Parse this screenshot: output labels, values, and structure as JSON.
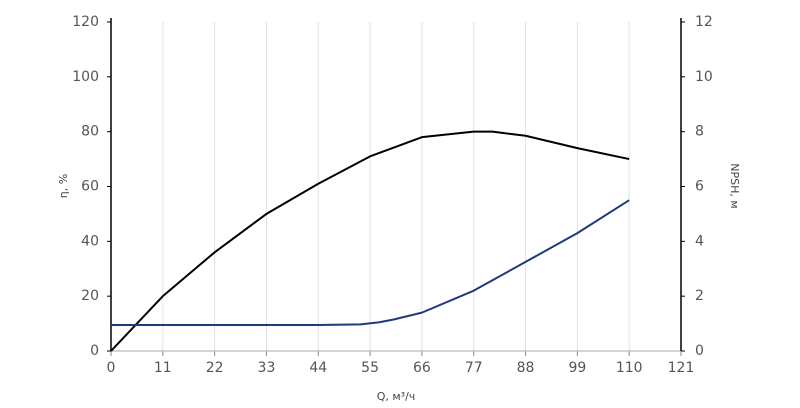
{
  "chart_data": {
    "type": "line",
    "x_label": "Q, м³/ч",
    "y_label": "η, %",
    "y2_label": "NPSH, м",
    "xlim": [
      0,
      121
    ],
    "xticks": [
      0,
      11,
      22,
      33,
      44,
      55,
      66,
      77,
      88,
      99,
      110,
      121
    ],
    "ylim": [
      0,
      120
    ],
    "yticks": [
      0,
      20,
      40,
      60,
      80,
      100,
      120
    ],
    "y2lim": [
      0,
      12
    ],
    "y2ticks": [
      0,
      2,
      4,
      6,
      8,
      10,
      12
    ],
    "grid": "x",
    "series": [
      {
        "color": "#000000",
        "x": [
          0,
          11,
          22,
          33,
          44,
          55,
          66,
          77,
          81,
          88,
          99,
          110
        ],
        "values": [
          0,
          20,
          36,
          50,
          61,
          71,
          78,
          80,
          80,
          78.5,
          74,
          70
        ]
      },
      {
        "color": "#1f3a7a",
        "axis": "y2",
        "x": [
          0,
          22,
          44,
          53,
          57,
          60,
          66,
          77,
          88,
          99,
          110
        ],
        "values": [
          0.95,
          0.95,
          0.95,
          0.97,
          1.05,
          1.15,
          1.4,
          2.2,
          3.25,
          4.3,
          5.5
        ]
      }
    ]
  }
}
